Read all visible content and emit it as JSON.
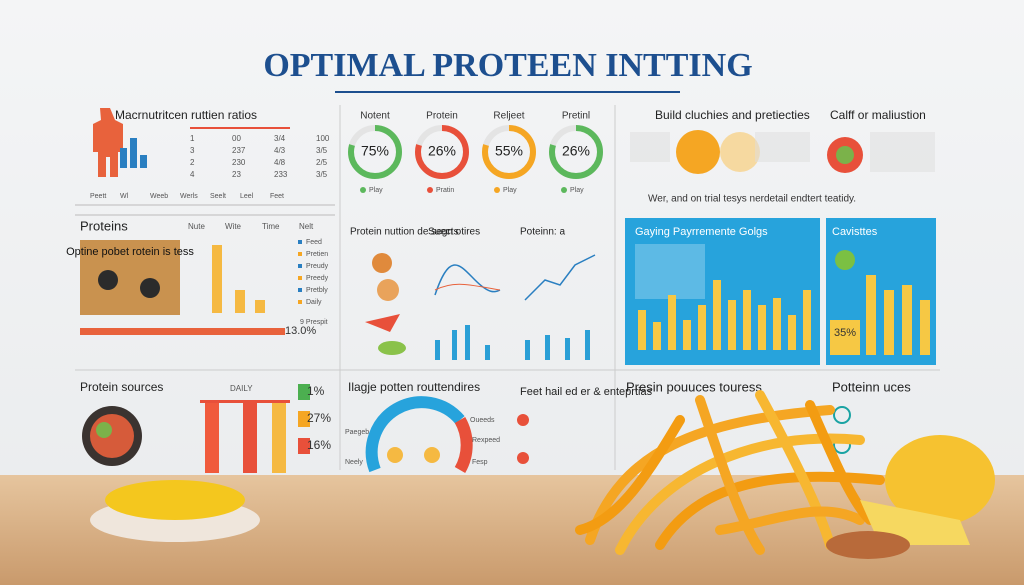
{
  "header": {
    "title": "OPTIMAL PROTEEN INTTING"
  },
  "ratios": {
    "title": "Macrnutritcen ruttien ratios",
    "rows": [
      [
        "1",
        "00",
        "3/4",
        "100"
      ],
      [
        "3",
        "237",
        "4/3",
        "3/5"
      ],
      [
        "2",
        "230",
        "4/8",
        "2/5"
      ],
      [
        "4",
        "23",
        "233",
        "3/5"
      ]
    ],
    "footer": [
      "Peett",
      "Wl",
      "Weeb",
      "Werls",
      "Seelt",
      "Leel",
      "Feet"
    ]
  },
  "gauges": [
    {
      "label": "Notent",
      "value": "75%",
      "legend": "Play"
    },
    {
      "label": "Protein",
      "value": "26%",
      "legend": "Pratin"
    },
    {
      "label": "Reljeet",
      "value": "55%",
      "legend": "Play"
    },
    {
      "label": "Pretinl",
      "value": "26%",
      "legend": "Play"
    }
  ],
  "build": {
    "title": "Build cluchies and pretiecties"
  },
  "calff": {
    "title": "Calff or maliustion"
  },
  "banner": "Wer, and on trial tesys nerdetail endtert teatidy.",
  "proteins": {
    "title": "Proteins",
    "columns": [
      "Nute",
      "Wite",
      "Time",
      "Nelt"
    ],
    "caption": "Optine pobet rotein is tess",
    "legend": [
      "Feed",
      "Pretien",
      "Preudy",
      "Preedy",
      "Pretbly",
      "Daily"
    ],
    "percent": "13.0%",
    "note": "9 Prespit"
  },
  "nutrition": {
    "title": "Protein nuttion de segn otires",
    "sub1": "Suects",
    "sub2": "Poteinn: a"
  },
  "goals": {
    "title": "Gaying Payrremente Golgs"
  },
  "cavistes": {
    "title": "Cavisttes",
    "value": "35%"
  },
  "sources": {
    "title": "Protein sources",
    "daily": "DAILY",
    "badges": [
      "1%",
      "27%",
      "16%"
    ]
  },
  "routines": {
    "title": "Ilagje potten routtendires",
    "labels": [
      "Oueeds",
      "Paegeb",
      "Rexpeed",
      "Neely",
      "Fesp"
    ]
  },
  "feet": {
    "title": "Feet hail ed er & enteprtias"
  },
  "presin": {
    "title": "Presin pouuces touress"
  },
  "uces": {
    "title": "Potteinn uces"
  }
}
